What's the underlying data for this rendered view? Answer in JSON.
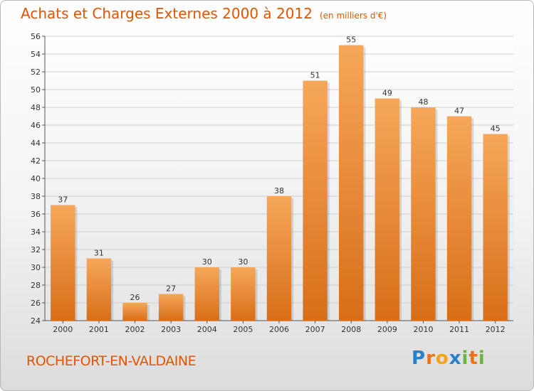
{
  "header": {
    "title": "Achats et Charges Externes 2000 à 2012",
    "unit": "(en milliers d'€)"
  },
  "commune": "ROCHEFORT-EN-VALDAINE",
  "logo": {
    "text": "Proxiti",
    "letters": [
      "P",
      "r",
      "o",
      "x",
      "i",
      "t",
      "i"
    ],
    "colors": [
      "#2a7fc9",
      "#e8731a",
      "#f2a21b",
      "#2a7fc9",
      "#6ab63d",
      "#e8731a",
      "#6ab63d"
    ]
  },
  "colors": {
    "bar_top": "#f6a75a",
    "bar_bottom": "#d86e18",
    "title": "#e45400"
  },
  "chart_data": {
    "type": "bar",
    "title": "Achats et Charges Externes 2000 à 2012",
    "subtitle": "(en milliers d'€)",
    "categories": [
      "2000",
      "2001",
      "2002",
      "2003",
      "2004",
      "2005",
      "2006",
      "2007",
      "2008",
      "2009",
      "2010",
      "2011",
      "2012"
    ],
    "values": [
      37,
      31,
      26,
      27,
      30,
      30,
      38,
      51,
      55,
      49,
      48,
      47,
      45
    ],
    "ylim": [
      24,
      56
    ],
    "yticks": [
      24,
      26,
      28,
      30,
      32,
      34,
      36,
      38,
      40,
      42,
      44,
      46,
      48,
      50,
      52,
      54,
      56
    ],
    "grid": true,
    "data_labels": true
  }
}
